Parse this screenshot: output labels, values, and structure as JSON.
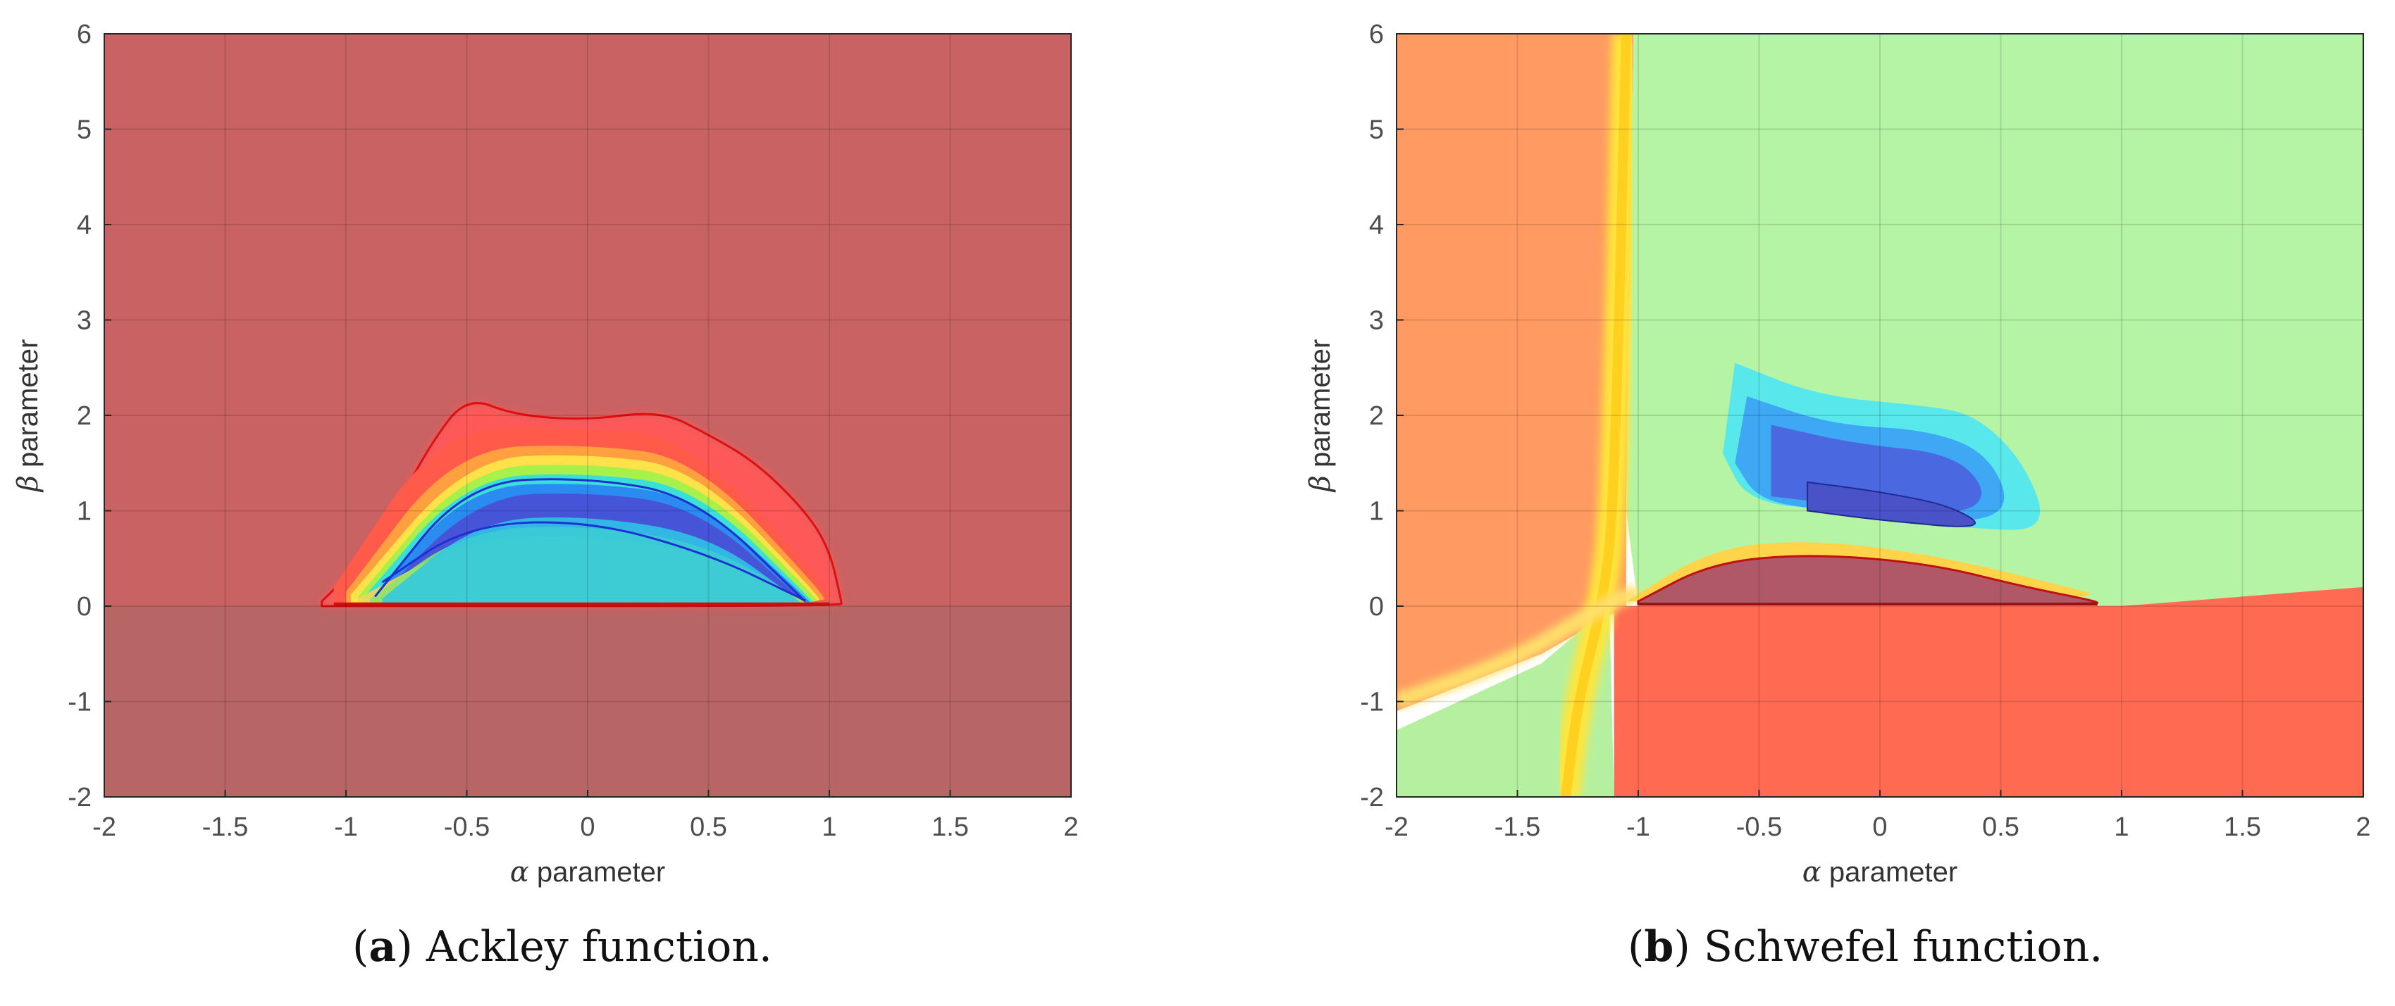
{
  "chart_data": [
    {
      "type": "heatmap",
      "panel_tag": "a",
      "caption": "Ackley function.",
      "xlabel_symbol": "α",
      "xlabel": "parameter",
      "ylabel_symbol": "β",
      "ylabel": "parameter",
      "xlim": [
        -2,
        2
      ],
      "ylim": [
        -2,
        6
      ],
      "xticks": [
        -2,
        -1.5,
        -1,
        -0.5,
        0,
        0.5,
        1,
        1.5,
        2
      ],
      "yticks": [
        -2,
        -1,
        0,
        1,
        2,
        3,
        4,
        5,
        6
      ],
      "xtick_labels": [
        "-2",
        "-1.5",
        "-1",
        "-0.5",
        "0",
        "0.5",
        "1",
        "1.5",
        "2"
      ],
      "ytick_labels": [
        "-2",
        "-1",
        "0",
        "1",
        "2",
        "3",
        "4",
        "5",
        "6"
      ],
      "grid": true,
      "colormap": "jet",
      "background_color": "#c96262",
      "lower_region_color": "#b86565",
      "region": {
        "description_points_outer": [
          [
            -1.1,
            0.05
          ],
          [
            -1.0,
            0.3
          ],
          [
            -0.8,
            1.0
          ],
          [
            -0.65,
            1.7
          ],
          [
            -0.5,
            2.2
          ],
          [
            -0.3,
            2.0
          ],
          [
            0.0,
            1.95
          ],
          [
            0.3,
            2.05
          ],
          [
            0.5,
            1.8
          ],
          [
            0.7,
            1.5
          ],
          [
            0.9,
            1.0
          ],
          [
            1.0,
            0.6
          ],
          [
            1.05,
            0.05
          ]
        ],
        "bands": [
          {
            "level": 1,
            "color": "#ff5a4a",
            "top": [
              [
                -1.05,
                0.2
              ],
              [
                -0.6,
                1.9
              ],
              [
                0.0,
                1.85
              ],
              [
                0.4,
                1.8
              ],
              [
                1.0,
                0.2
              ]
            ]
          },
          {
            "level": 2,
            "color": "#ffa040",
            "top": [
              [
                -1.0,
                0.15
              ],
              [
                -0.55,
                1.65
              ],
              [
                0.0,
                1.7
              ],
              [
                0.45,
                1.55
              ],
              [
                0.98,
                0.12
              ]
            ]
          },
          {
            "level": 3,
            "color": "#ffe14a",
            "top": [
              [
                -0.98,
                0.12
              ],
              [
                -0.5,
                1.55
              ],
              [
                0.0,
                1.6
              ],
              [
                0.45,
                1.45
              ],
              [
                0.96,
                0.1
              ]
            ]
          },
          {
            "level": 4,
            "color": "#a8f04a",
            "top": [
              [
                -0.95,
                0.1
              ],
              [
                -0.5,
                1.45
              ],
              [
                0.0,
                1.5
              ],
              [
                0.45,
                1.35
              ],
              [
                0.95,
                0.08
              ]
            ]
          },
          {
            "level": 5,
            "color": "#38e0d8",
            "top": [
              [
                -0.93,
                0.08
              ],
              [
                -0.5,
                1.35
              ],
              [
                0.0,
                1.4
              ],
              [
                0.45,
                1.25
              ],
              [
                0.93,
                0.06
              ]
            ]
          },
          {
            "level": 6,
            "color": "#2a8cf0",
            "top": [
              [
                -0.9,
                0.07
              ],
              [
                -0.5,
                1.25
              ],
              [
                0.0,
                1.3
              ],
              [
                0.45,
                1.15
              ],
              [
                0.92,
                0.05
              ]
            ]
          },
          {
            "level": 7,
            "color": "#4655d8",
            "top": [
              [
                -0.88,
                0.06
              ],
              [
                -0.45,
                1.15
              ],
              [
                0.0,
                1.2
              ],
              [
                0.45,
                1.05
              ],
              [
                0.9,
                0.04
              ]
            ]
          }
        ],
        "inner_lobes": [
          {
            "color": "#ffd64a",
            "top": [
              [
                -0.95,
                0.08
              ],
              [
                -0.5,
                0.7
              ],
              [
                0.0,
                0.75
              ],
              [
                0.5,
                0.55
              ],
              [
                0.9,
                0.05
              ]
            ]
          },
          {
            "color": "#88e868",
            "top": [
              [
                -0.9,
                0.08
              ],
              [
                -0.5,
                0.8
              ],
              [
                0.0,
                0.85
              ],
              [
                0.5,
                0.65
              ],
              [
                0.9,
                0.05
              ]
            ]
          },
          {
            "color": "#2ec8e8",
            "top": [
              [
                -0.85,
                0.08
              ],
              [
                -0.45,
                0.9
              ],
              [
                0.0,
                0.95
              ],
              [
                0.5,
                0.75
              ],
              [
                0.88,
                0.05
              ]
            ]
          }
        ]
      }
    },
    {
      "type": "heatmap",
      "panel_tag": "b",
      "caption": "Schwefel function.",
      "xlabel_symbol": "α",
      "xlabel": "parameter",
      "ylabel_symbol": "β",
      "ylabel": "parameter",
      "xlim": [
        -2,
        2
      ],
      "ylim": [
        -2,
        6
      ],
      "xticks": [
        -2,
        -1.5,
        -1,
        -0.5,
        0,
        0.5,
        1,
        1.5,
        2
      ],
      "yticks": [
        -2,
        -1,
        0,
        1,
        2,
        3,
        4,
        5,
        6
      ],
      "xtick_labels": [
        "-2",
        "-1.5",
        "-1",
        "-0.5",
        "0",
        "0.5",
        "1",
        "1.5",
        "2"
      ],
      "ytick_labels": [
        "-2",
        "-1",
        "0",
        "1",
        "2",
        "3",
        "4",
        "5",
        "6"
      ],
      "grid": true,
      "colormap": "jet",
      "regions": [
        {
          "name": "left-orange",
          "color": "#ff9a62",
          "points": [
            [
              -2,
              6
            ],
            [
              -1.02,
              6
            ],
            [
              -1.05,
              1.0
            ],
            [
              -1.05,
              0.0
            ],
            [
              -1.4,
              -0.5
            ],
            [
              -2,
              -1.1
            ]
          ]
        },
        {
          "name": "top-green",
          "color": "#b4f4a4",
          "points": [
            [
              -1.02,
              6
            ],
            [
              2,
              6
            ],
            [
              2,
              0.15
            ],
            [
              1.0,
              0.0
            ],
            [
              -1.0,
              0.0
            ],
            [
              -1.05,
              1.0
            ]
          ]
        },
        {
          "name": "bottom-right-red",
          "color": "#ff6a52",
          "points": [
            [
              -1.1,
              0.0
            ],
            [
              1.0,
              0.0
            ],
            [
              2,
              0.2
            ],
            [
              2,
              -2
            ],
            [
              -1.1,
              -2
            ]
          ]
        },
        {
          "name": "bottom-left-green",
          "color": "#b4f0a0",
          "points": [
            [
              -2,
              -1.3
            ],
            [
              -1.4,
              -0.6
            ],
            [
              -1.12,
              0.0
            ],
            [
              -1.1,
              -2
            ],
            [
              -2,
              -2
            ]
          ]
        }
      ],
      "yellow_band": [
        [
          -1.05,
          6
        ],
        [
          -1.1,
          1.0
        ],
        [
          -1.15,
          0.0
        ],
        [
          -1.25,
          -1.0
        ],
        [
          -1.3,
          -2
        ]
      ],
      "blue_blob": {
        "levels": [
          {
            "color": "#58e8ec",
            "points": [
              [
                -0.6,
                2.55
              ],
              [
                -0.25,
                2.2
              ],
              [
                0.2,
                2.1
              ],
              [
                0.4,
                2.0
              ],
              [
                0.6,
                1.5
              ],
              [
                0.7,
                0.8
              ],
              [
                0.4,
                0.8
              ],
              [
                -0.2,
                1.0
              ],
              [
                -0.55,
                1.1
              ],
              [
                -0.65,
                1.6
              ]
            ]
          },
          {
            "color": "#3fa8f4",
            "points": [
              [
                -0.55,
                2.2
              ],
              [
                -0.2,
                1.9
              ],
              [
                0.2,
                1.85
              ],
              [
                0.45,
                1.6
              ],
              [
                0.55,
                1.0
              ],
              [
                0.3,
                0.85
              ],
              [
                -0.2,
                1.0
              ],
              [
                -0.5,
                1.1
              ],
              [
                -0.6,
                1.5
              ]
            ]
          },
          {
            "color": "#4a68e0",
            "points": [
              [
                -0.45,
                1.9
              ],
              [
                -0.1,
                1.7
              ],
              [
                0.3,
                1.6
              ],
              [
                0.45,
                1.2
              ],
              [
                0.35,
                0.95
              ],
              [
                -0.1,
                1.05
              ],
              [
                -0.45,
                1.15
              ]
            ]
          },
          {
            "color": "#4a52c8",
            "points": [
              [
                -0.3,
                1.3
              ],
              [
                0.0,
                1.2
              ],
              [
                0.3,
                1.05
              ],
              [
                0.45,
                0.8
              ],
              [
                0.0,
                0.9
              ],
              [
                -0.3,
                1.0
              ]
            ]
          }
        ]
      },
      "dark_lens": {
        "color": "#b05868",
        "top": [
          [
            -1.0,
            0.05
          ],
          [
            -0.7,
            0.45
          ],
          [
            -0.3,
            0.55
          ],
          [
            0.2,
            0.45
          ],
          [
            0.6,
            0.2
          ],
          [
            0.9,
            0.05
          ]
        ]
      }
    }
  ]
}
